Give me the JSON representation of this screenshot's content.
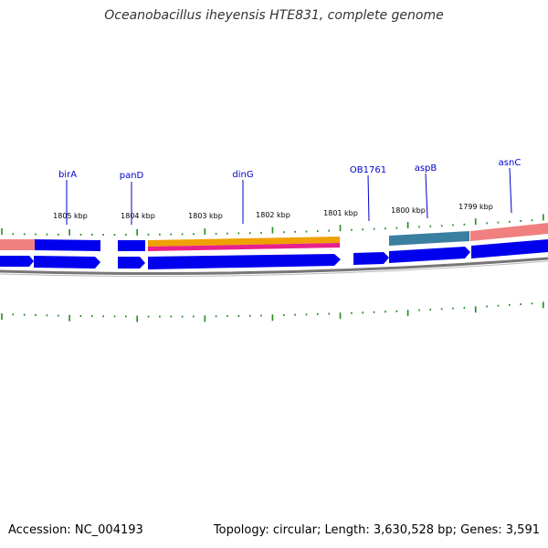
{
  "title": "Oceanobacillus iheyensis HTE831, complete genome",
  "footer": {
    "accession_label": "Accession:",
    "accession": "NC_004193",
    "topology_text": "Topology: circular; Length: 3,630,528 bp; Genes: 3,591"
  },
  "colors": {
    "forward_gene": "#0000ee",
    "reverse_gene": "#0000ee",
    "backbone": "#777777",
    "tick": "#228b22",
    "label": "#0000cc",
    "feature_pink": "#f08080",
    "feature_orange": "#f0a000",
    "feature_magenta": "#e8208c",
    "feature_steel": "#3a7ea0"
  },
  "scale_ticks": [
    {
      "label": "1805 kbp"
    },
    {
      "label": "1804 kbp"
    },
    {
      "label": "1803 kbp"
    },
    {
      "label": "1802 kbp"
    },
    {
      "label": "1801 kbp"
    },
    {
      "label": "1800 kbp"
    },
    {
      "label": "1799 kbp"
    }
  ],
  "genes": [
    {
      "name": "birA"
    },
    {
      "name": "panD"
    },
    {
      "name": "dinG"
    },
    {
      "name": "OB1761"
    },
    {
      "name": "aspB"
    },
    {
      "name": "asnC"
    }
  ]
}
